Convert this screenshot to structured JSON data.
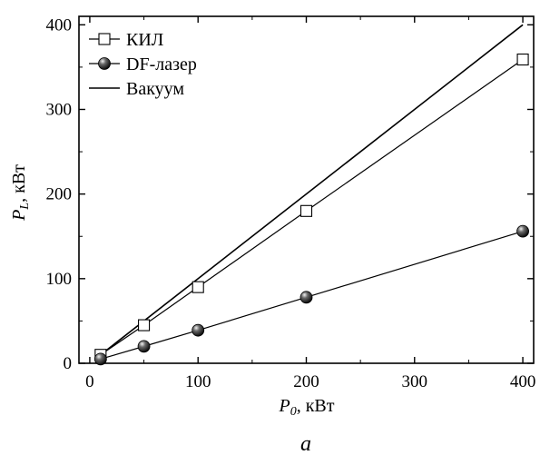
{
  "chart_data": {
    "type": "line",
    "title": "",
    "panel_label": "a",
    "xlabel": {
      "symbol": "P",
      "sub": "0",
      "unit": ", кВт"
    },
    "ylabel": {
      "symbol": "P",
      "sub": "L",
      "unit": ", кВт"
    },
    "xlim": [
      -10,
      410
    ],
    "ylim": [
      0,
      410
    ],
    "xticks": [
      0,
      100,
      200,
      300,
      400
    ],
    "yticks": [
      0,
      100,
      200,
      300,
      400
    ],
    "grid": false,
    "legend_position": "top-left",
    "series": [
      {
        "name": "КИЛ",
        "marker": "open-square",
        "color": "#000000",
        "x": [
          10,
          50,
          100,
          200,
          400
        ],
        "y": [
          10,
          45,
          90,
          180,
          359
        ]
      },
      {
        "name": "DF-лазер",
        "marker": "filled-sphere",
        "color": "#000000",
        "x": [
          10,
          50,
          100,
          200,
          400
        ],
        "y": [
          5,
          20,
          39,
          78,
          156
        ]
      },
      {
        "name": "Вакуум",
        "marker": "none",
        "color": "#000000",
        "x": [
          10,
          400
        ],
        "y": [
          10,
          400
        ]
      }
    ]
  }
}
